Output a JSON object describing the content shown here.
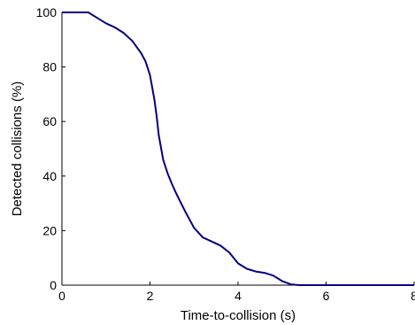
{
  "chart_data": {
    "type": "line",
    "title": "",
    "xlabel": "Time-to-collision (s)",
    "ylabel": "Detected collisions (%)",
    "xlim": [
      0,
      8
    ],
    "ylim": [
      0,
      100
    ],
    "xticks": [
      "0",
      "2",
      "4",
      "6",
      "8"
    ],
    "yticks": [
      "0",
      "20",
      "40",
      "60",
      "80",
      "100"
    ],
    "grid": false,
    "line_color": "#000080",
    "x": [
      0,
      0.6,
      0.8,
      1.0,
      1.2,
      1.4,
      1.6,
      1.8,
      1.9,
      2.0,
      2.1,
      2.15,
      2.2,
      2.3,
      2.4,
      2.5,
      2.6,
      2.8,
      3.0,
      3.2,
      3.4,
      3.6,
      3.8,
      4.0,
      4.2,
      4.4,
      4.6,
      4.8,
      5.0,
      5.2,
      5.4,
      5.5,
      6.0,
      7.0,
      8.0
    ],
    "y": [
      100,
      100,
      98,
      96,
      94.5,
      92.5,
      89.5,
      85,
      82,
      77,
      68,
      62,
      55,
      46,
      41,
      37,
      33.5,
      27,
      21,
      17.5,
      16,
      14.5,
      12,
      8,
      6,
      5,
      4.5,
      3.5,
      1.5,
      0.3,
      0,
      0,
      0,
      0,
      0
    ]
  }
}
